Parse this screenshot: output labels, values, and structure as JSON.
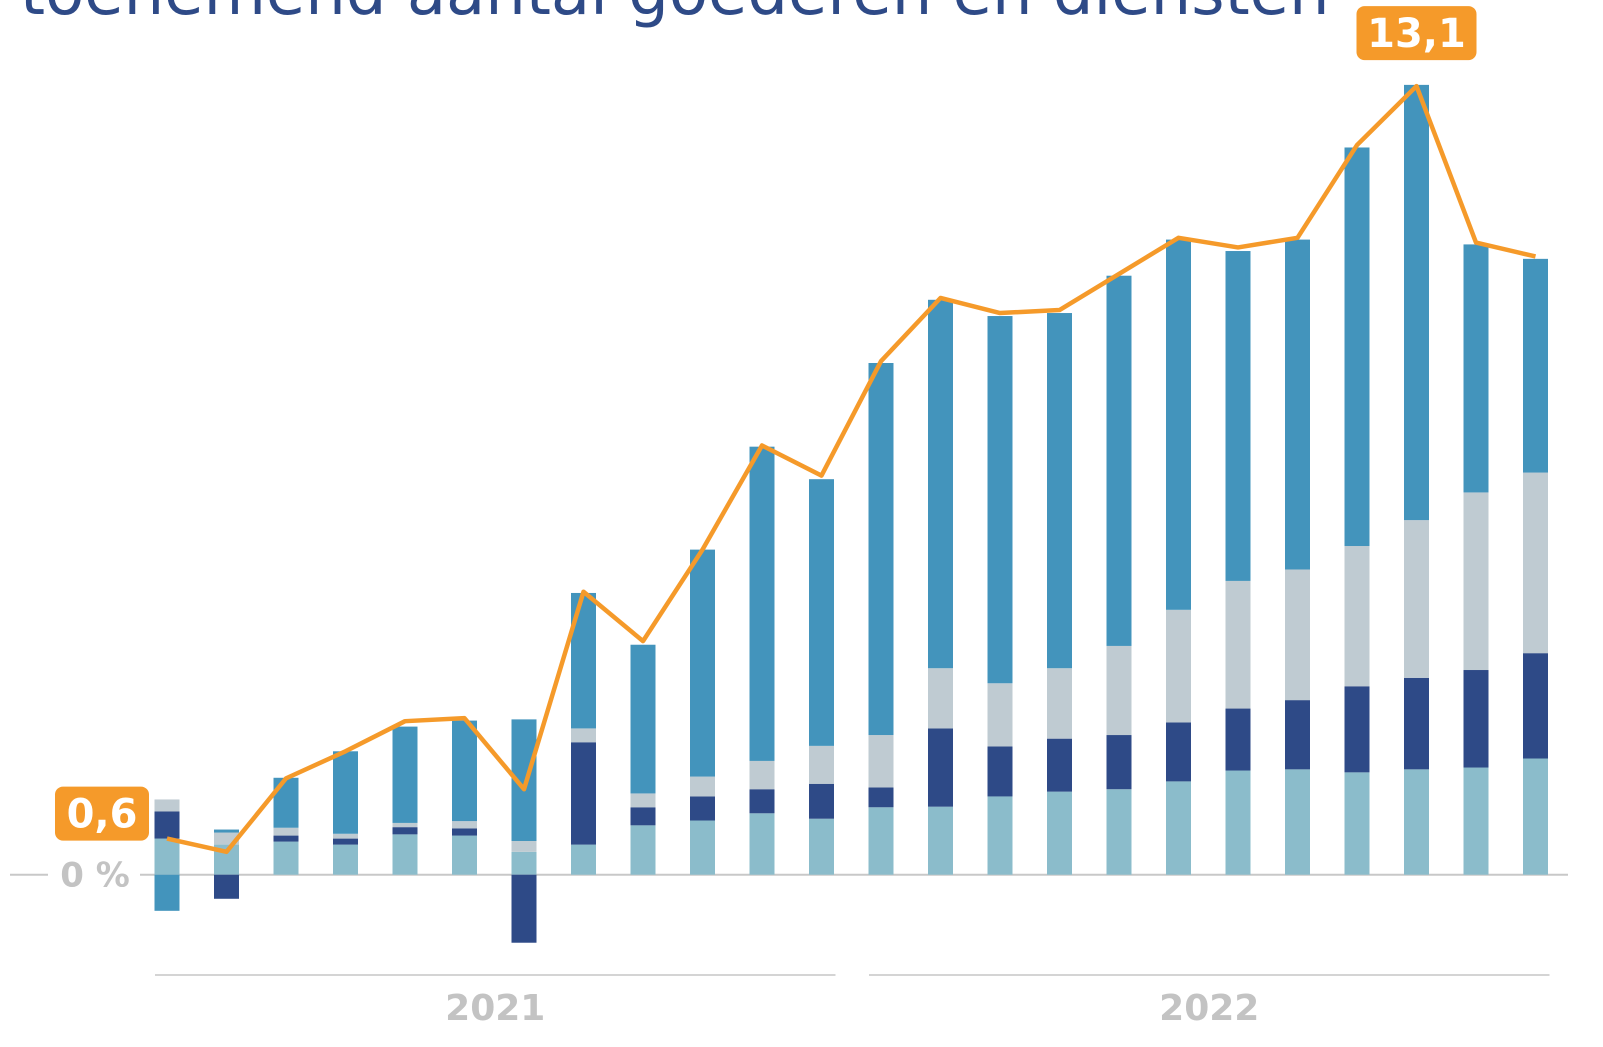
{
  "chart_data": {
    "type": "bar",
    "stacked": true,
    "title": "toenemend aantal goederen en diensten",
    "categories": [
      null,
      null,
      null,
      null,
      null,
      null,
      null,
      null,
      null,
      null,
      null,
      null,
      null,
      null,
      null,
      null,
      null,
      null,
      null,
      null,
      null,
      null,
      null,
      null
    ],
    "x_groups": [
      "2021",
      "2022"
    ],
    "series": [
      {
        "color": "#8bbccb",
        "values": [
          0.6,
          0.5,
          0.55,
          0.5,
          0.67,
          0.65,
          0.38,
          0.5,
          0.82,
          0.9,
          1.02,
          0.93,
          1.12,
          1.13,
          1.3,
          1.38,
          1.42,
          1.55,
          1.73,
          1.75,
          1.7,
          1.75,
          1.78,
          1.93
        ]
      },
      {
        "color": "#2e4a87",
        "values": [
          0.45,
          -0.4,
          0.1,
          0.1,
          0.12,
          0.12,
          -1.13,
          1.7,
          0.3,
          0.4,
          0.4,
          0.58,
          0.33,
          1.3,
          0.83,
          0.88,
          0.9,
          0.98,
          1.03,
          1.15,
          1.43,
          1.52,
          1.62,
          1.75
        ]
      },
      {
        "color": "#bfcbd2",
        "values": [
          0.2,
          0.2,
          0.13,
          0.08,
          0.07,
          0.12,
          0.18,
          0.23,
          0.23,
          0.33,
          0.47,
          0.63,
          0.87,
          1.0,
          1.05,
          1.17,
          1.48,
          1.87,
          2.12,
          2.17,
          2.33,
          2.62,
          2.95,
          3.0
        ]
      },
      {
        "color": "#4394bc",
        "values": [
          -0.6,
          0.05,
          0.83,
          1.37,
          1.6,
          1.67,
          2.02,
          2.25,
          2.47,
          3.77,
          5.22,
          4.43,
          6.18,
          6.12,
          6.1,
          5.9,
          6.15,
          6.15,
          5.48,
          5.48,
          6.62,
          7.23,
          4.12,
          3.55
        ]
      }
    ],
    "line": {
      "color": "#f59a2a",
      "values": [
        0.6,
        0.38,
        1.6,
        2.05,
        2.55,
        2.6,
        1.42,
        4.7,
        3.88,
        5.4,
        7.13,
        6.63,
        8.53,
        9.58,
        9.33,
        9.38,
        9.98,
        10.58,
        10.42,
        10.58,
        12.12,
        13.1,
        10.5,
        10.27
      ],
      "value_labels": [
        "0,6",
        null,
        null,
        null,
        null,
        null,
        null,
        null,
        null,
        null,
        null,
        null,
        null,
        null,
        null,
        null,
        null,
        null,
        null,
        null,
        null,
        "13,1",
        null,
        null
      ]
    },
    "ylim": [
      -1.5,
      13.5
    ],
    "yticks": [
      {
        "value": 0,
        "label": "0 %"
      }
    ]
  }
}
